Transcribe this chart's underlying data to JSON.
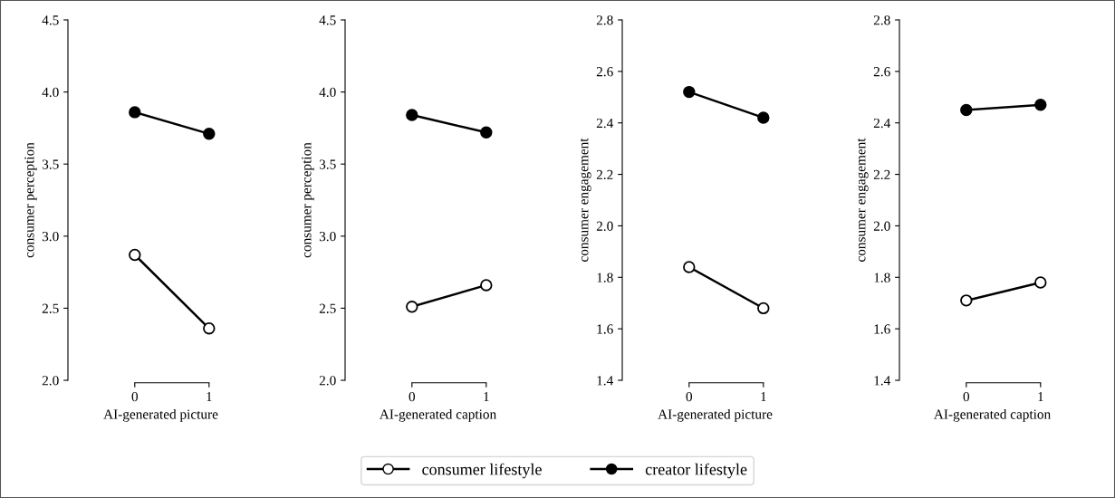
{
  "chart_data": [
    {
      "type": "line",
      "categories": [
        "0",
        "1"
      ],
      "xlabel": "AI-generated picture",
      "ylabel": "consumer perception",
      "ylim": [
        2.0,
        4.5
      ],
      "yticks": [
        {
          "value": 2.0,
          "label": "2.0"
        },
        {
          "value": 2.5,
          "label": "2.5"
        },
        {
          "value": 3.0,
          "label": "3.0"
        },
        {
          "value": 3.5,
          "label": "3.5"
        },
        {
          "value": 4.0,
          "label": "4.0"
        },
        {
          "value": 4.5,
          "label": "4.5"
        }
      ],
      "marker": "circle",
      "legend": "bottom",
      "series": [
        {
          "name": "consumer lifestyle",
          "color": "#000000",
          "colors": [
            "#ffffff",
            "#ffffff"
          ],
          "values": [
            2.87,
            2.36
          ]
        },
        {
          "name": "creator lifestyle",
          "color": "#000000",
          "colors": [
            "#000000",
            "#000000"
          ],
          "values": [
            3.86,
            3.71
          ]
        }
      ]
    },
    {
      "type": "line",
      "categories": [
        "0",
        "1"
      ],
      "xlabel": "AI-generated caption",
      "ylabel": "consumer perception",
      "ylim": [
        2.0,
        4.5
      ],
      "yticks": [
        {
          "value": 2.0,
          "label": "2.0"
        },
        {
          "value": 2.5,
          "label": "2.5"
        },
        {
          "value": 3.0,
          "label": "3.0"
        },
        {
          "value": 3.5,
          "label": "3.5"
        },
        {
          "value": 4.0,
          "label": "4.0"
        },
        {
          "value": 4.5,
          "label": "4.5"
        }
      ],
      "marker": "circle",
      "series": [
        {
          "color": "#000000",
          "colors": [
            "#ffffff",
            "#ffffff"
          ],
          "values": [
            2.51,
            2.66
          ]
        },
        {
          "color": "#000000",
          "colors": [
            "#000000",
            "#000000"
          ],
          "values": [
            3.84,
            3.72
          ]
        }
      ]
    },
    {
      "type": "line",
      "categories": [
        "0",
        "1"
      ],
      "xlabel": "AI-generated picture",
      "ylabel": "consumer engagement",
      "ylim": [
        1.4,
        2.8
      ],
      "yticks": [
        {
          "value": 1.4,
          "label": "1.4"
        },
        {
          "value": 1.6,
          "label": "1.6"
        },
        {
          "value": 1.8,
          "label": "1.8"
        },
        {
          "value": 2.0,
          "label": "2.0"
        },
        {
          "value": 2.2,
          "label": "2.2"
        },
        {
          "value": 2.4,
          "label": "2.4"
        },
        {
          "value": 2.6,
          "label": "2.6"
        },
        {
          "value": 2.8,
          "label": "2.8"
        }
      ],
      "marker": "circle",
      "series": [
        {
          "color": "#000000",
          "colors": [
            "#ffffff",
            "#ffffff"
          ],
          "values": [
            1.84,
            1.68
          ]
        },
        {
          "color": "#000000",
          "colors": [
            "#000000",
            "#000000"
          ],
          "values": [
            2.52,
            2.42
          ]
        }
      ]
    },
    {
      "type": "line",
      "categories": [
        "0",
        "1"
      ],
      "xlabel": "AI-generated caption",
      "ylabel": "consumer engagement",
      "ylim": [
        1.4,
        2.8
      ],
      "yticks": [
        {
          "value": 1.4,
          "label": "1.4"
        },
        {
          "value": 1.6,
          "label": "1.6"
        },
        {
          "value": 1.8,
          "label": "1.8"
        },
        {
          "value": 2.0,
          "label": "2.0"
        },
        {
          "value": 2.2,
          "label": "2.2"
        },
        {
          "value": 2.4,
          "label": "2.4"
        },
        {
          "value": 2.6,
          "label": "2.6"
        },
        {
          "value": 2.8,
          "label": "2.8"
        }
      ],
      "marker": "circle",
      "series": [
        {
          "color": "#000000",
          "colors": [
            "#ffffff",
            "#ffffff"
          ],
          "values": [
            1.71,
            1.78
          ]
        },
        {
          "color": "#000000",
          "colors": [
            "#000000",
            "#000000"
          ],
          "values": [
            2.45,
            2.47
          ]
        }
      ]
    }
  ]
}
